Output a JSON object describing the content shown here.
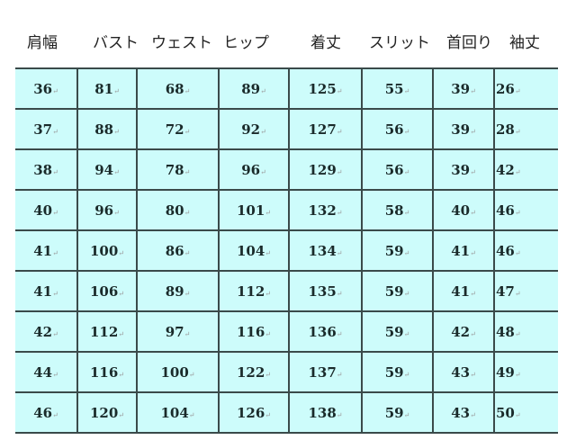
{
  "headers": [
    "肩幅",
    "バスト",
    "ウェスト",
    "ヒップ",
    "着丈",
    "スリット",
    "首回り",
    "袖丈"
  ],
  "rows": [
    [
      "36",
      "81",
      "68",
      "89",
      "125",
      "55",
      "39",
      "26"
    ],
    [
      "37",
      "88",
      "72",
      "92",
      "127",
      "56",
      "39",
      "28"
    ],
    [
      "38",
      "94",
      "78",
      "96",
      "129",
      "56",
      "39",
      "42"
    ],
    [
      "40",
      "96",
      "80",
      "101",
      "132",
      "58",
      "40",
      "46"
    ],
    [
      "41",
      "100",
      "86",
      "104",
      "134",
      "59",
      "41",
      "46"
    ],
    [
      "41",
      "106",
      "89",
      "112",
      "135",
      "59",
      "41",
      "47"
    ],
    [
      "42",
      "112",
      "97",
      "116",
      "136",
      "59",
      "42",
      "48"
    ],
    [
      "44",
      "116",
      "100",
      "122",
      "137",
      "59",
      "43",
      "49"
    ],
    [
      "46",
      "120",
      "104",
      "126",
      "138",
      "59",
      "43",
      "50"
    ]
  ],
  "colors": {
    "cell_bg": "#cdfcfb",
    "grid": "#3a4a4a"
  }
}
